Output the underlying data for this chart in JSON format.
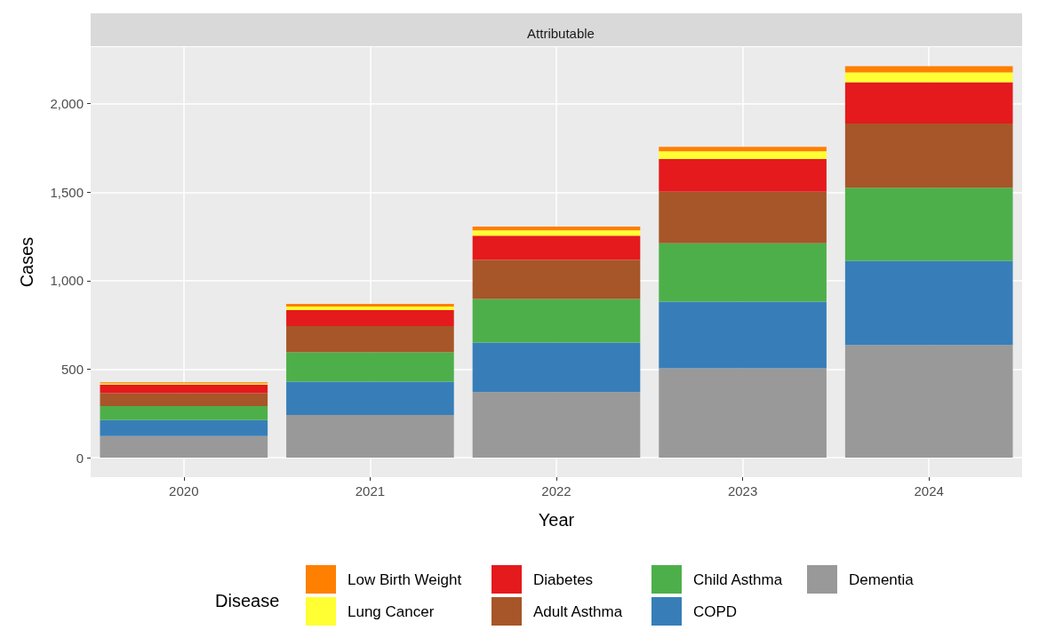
{
  "chart_data": {
    "type": "bar",
    "title": "Attributable",
    "xlabel": "Year",
    "ylabel": "Cases",
    "legend_title": "Disease",
    "categories": [
      "2020",
      "2021",
      "2022",
      "2023",
      "2024"
    ],
    "stacked": true,
    "series": [
      {
        "name": "Dementia",
        "color": "#999999",
        "values": [
          122,
          241,
          371,
          505,
          637
        ]
      },
      {
        "name": "COPD",
        "color": "#377eb8",
        "values": [
          90,
          189,
          280,
          377,
          476
        ]
      },
      {
        "name": "Child Asthma",
        "color": "#4daf4a",
        "values": [
          80,
          165,
          246,
          330,
          412
        ]
      },
      {
        "name": "Adult Asthma",
        "color": "#a65628",
        "values": [
          72,
          149,
          220,
          291,
          363
        ]
      },
      {
        "name": "Diabetes",
        "color": "#e41a1c",
        "values": [
          49,
          90,
          137,
          185,
          234
        ]
      },
      {
        "name": "Lung Cancer",
        "color": "#ffff33",
        "values": [
          7,
          20,
          30,
          43,
          55
        ]
      },
      {
        "name": "Low Birth Weight",
        "color": "#ff7f00",
        "values": [
          6,
          15,
          22,
          25,
          35
        ]
      }
    ],
    "ylim": [
      -110,
      2320
    ],
    "yticks": [
      0,
      500,
      {
        "value": 1000,
        "label": "1,000"
      },
      {
        "value": 1500,
        "label": "1,500"
      },
      {
        "value": 2000,
        "label": "2,000"
      }
    ],
    "grid": true,
    "legend": "bottom"
  }
}
